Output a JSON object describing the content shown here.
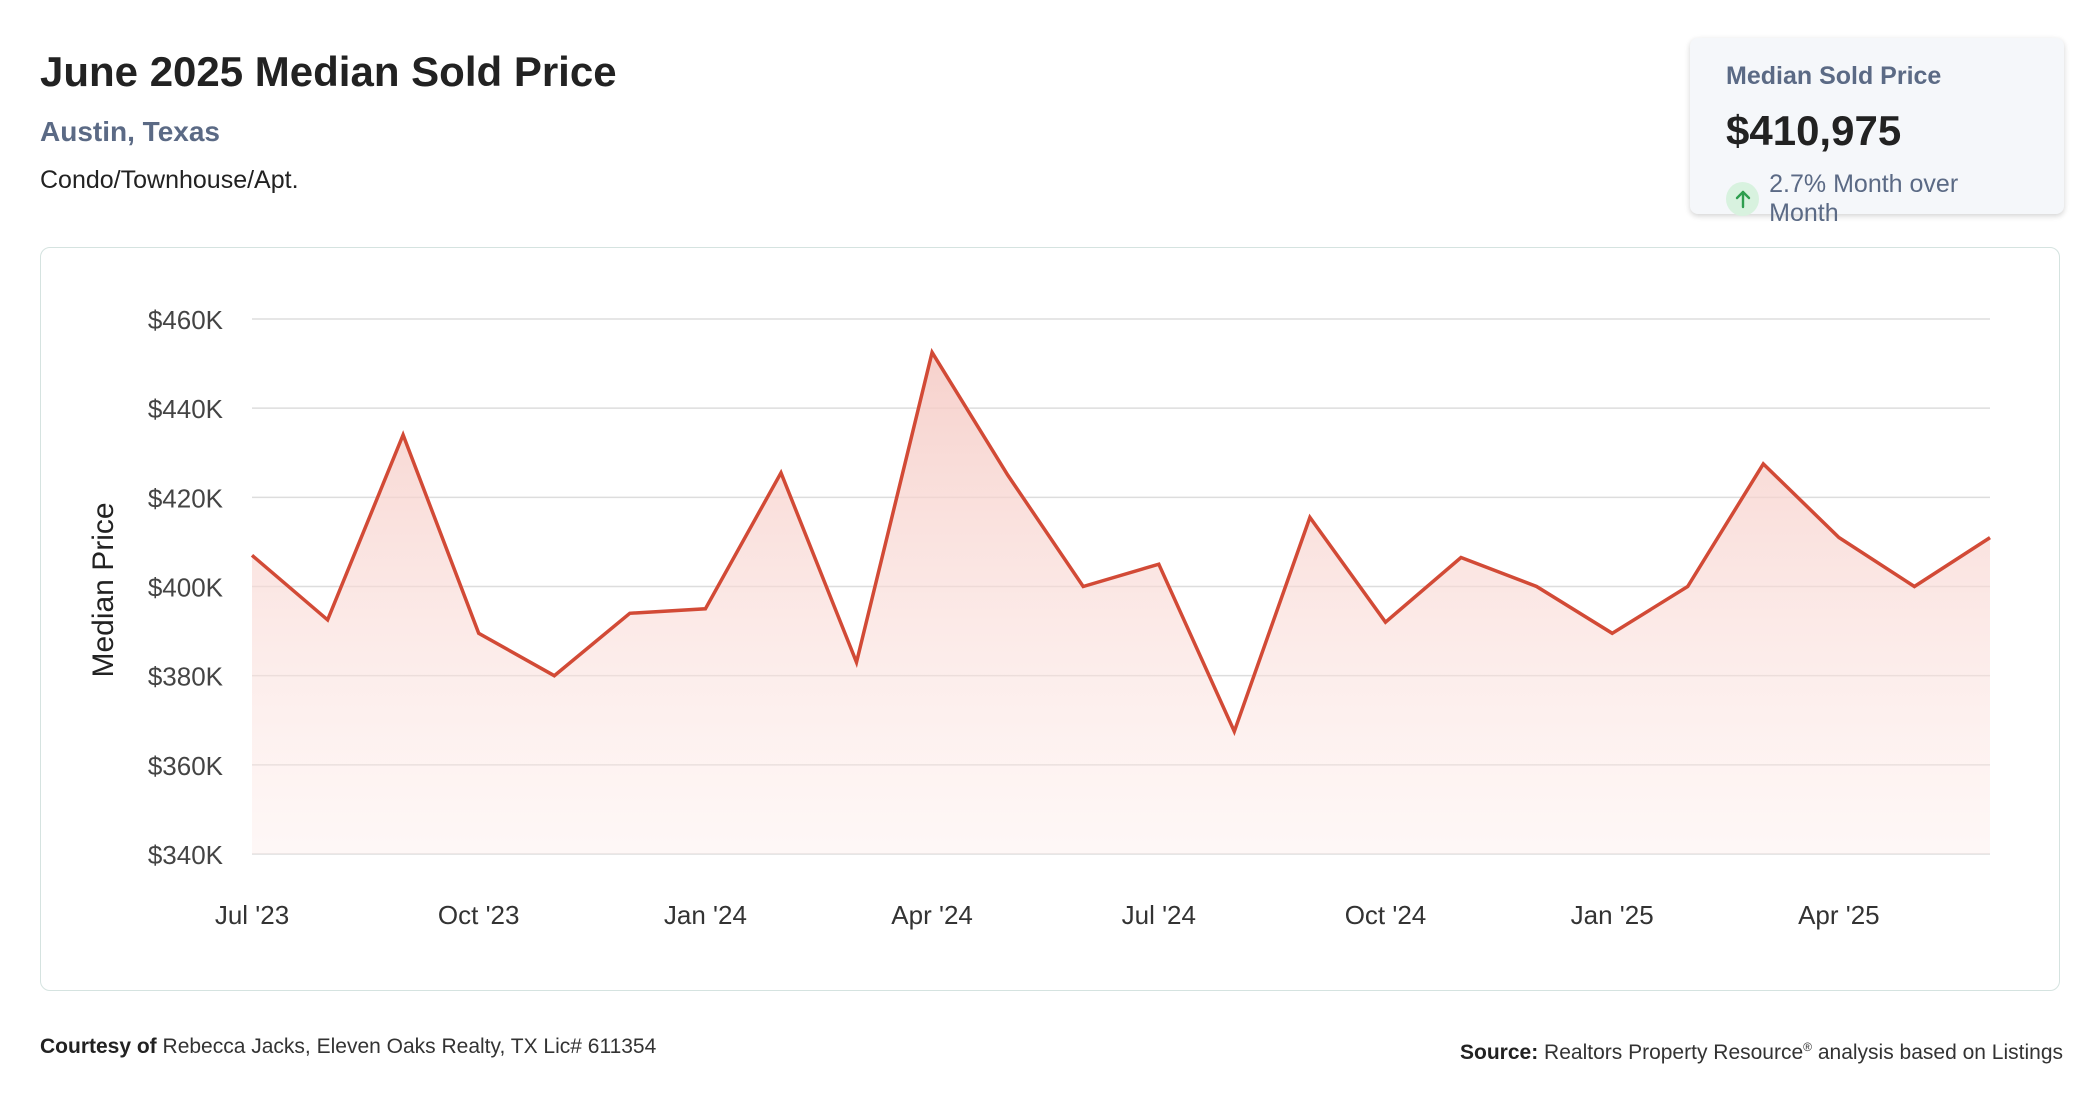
{
  "header": {
    "title": "June 2025 Median Sold Price",
    "location": "Austin, Texas",
    "property_type": "Condo/Townhouse/Apt."
  },
  "stat_card": {
    "label": "Median Sold Price",
    "value": "$410,975",
    "change_text": "2.7% Month over Month",
    "change_direction": "up",
    "change_icon": "arrow-up-icon",
    "change_color": "#2e9e4f"
  },
  "colors": {
    "line": "#d24a36",
    "area_top": "#f7cfca",
    "grid": "#dddddd",
    "axis_text": "#444444"
  },
  "chart_data": {
    "type": "area",
    "ylabel": "Median Price",
    "xlabel": "",
    "ylim": [
      340000,
      460000
    ],
    "y_ticks": [
      340000,
      360000,
      380000,
      400000,
      420000,
      440000,
      460000
    ],
    "y_tick_labels": [
      "$340K",
      "$360K",
      "$380K",
      "$400K",
      "$420K",
      "$440K",
      "$460K"
    ],
    "x_tick_labels": [
      "Jul '23",
      "Oct '23",
      "Jan '24",
      "Apr '24",
      "Jul '24",
      "Oct '24",
      "Jan '25",
      "Apr '25"
    ],
    "x_tick_months": [
      "2023-07",
      "2023-10",
      "2024-01",
      "2024-04",
      "2024-07",
      "2024-10",
      "2025-01",
      "2025-04"
    ],
    "grid": true,
    "legend": "none",
    "series": [
      {
        "x": [
          "2023-07",
          "2023-08",
          "2023-09",
          "2023-10",
          "2023-11",
          "2023-12",
          "2024-01",
          "2024-02",
          "2024-03",
          "2024-04",
          "2024-05",
          "2024-06",
          "2024-07",
          "2024-08",
          "2024-09",
          "2024-10",
          "2024-11",
          "2024-12",
          "2025-01",
          "2025-02",
          "2025-03",
          "2025-04",
          "2025-05",
          "2025-06"
        ],
        "values": [
          407000,
          392500,
          434000,
          389500,
          380000,
          394000,
          395000,
          425500,
          383000,
          452500,
          425000,
          400000,
          405000,
          367500,
          415500,
          392000,
          406500,
          400000,
          389500,
          400000,
          427500,
          411000,
          400000,
          410975
        ]
      }
    ]
  },
  "footer": {
    "courtesy_label": "Courtesy of",
    "courtesy_text": "Rebecca Jacks, Eleven Oaks Realty, TX Lic# 611354",
    "source_label": "Source:",
    "source_text_1": "Realtors Property Resource",
    "source_sup": "®",
    "source_text_2": "analysis based on Listings"
  }
}
